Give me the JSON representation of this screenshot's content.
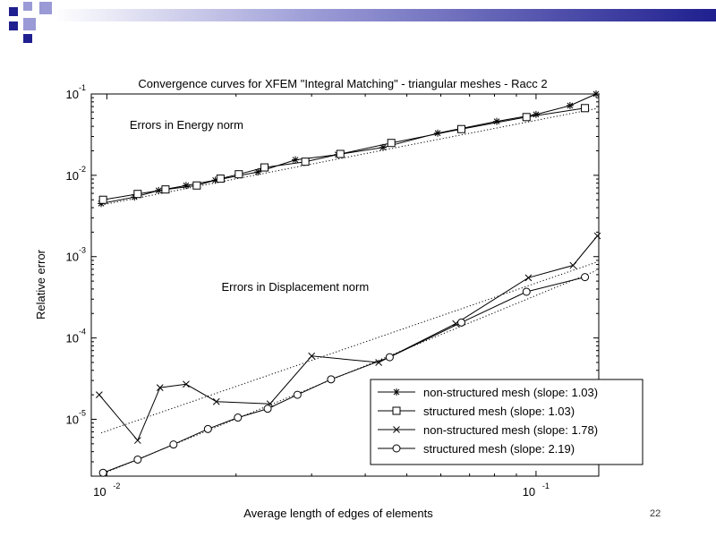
{
  "slide": {
    "page_number": "22",
    "accent": "#1f1f8f",
    "accent_light": "#9a9ad6"
  },
  "chart_data": {
    "type": "line",
    "title": "Convergence curves for XFEM \"Integral Matching\" - triangular meshes - Racc 2",
    "xlabel": "Average length of edges of elements",
    "ylabel": "Relative error",
    "x_scale": "log",
    "y_scale": "log",
    "xlim": [
      0.0092,
      0.14
    ],
    "ylim": [
      2e-06,
      0.1
    ],
    "grid": false,
    "legend_position": "bottom-right",
    "x_ticks": [
      {
        "value": 0.01,
        "base": "10",
        "exp": "-2"
      },
      {
        "value": 0.1,
        "base": "10",
        "exp": "-1"
      }
    ],
    "y_ticks": [
      {
        "value": 0.1,
        "base": "10",
        "exp": "-1"
      },
      {
        "value": 0.01,
        "base": "10",
        "exp": "-2"
      },
      {
        "value": 0.001,
        "base": "10",
        "exp": "-3"
      },
      {
        "value": 0.0001,
        "base": "10",
        "exp": "-4"
      },
      {
        "value": 1e-05,
        "base": "10",
        "exp": "-5"
      }
    ],
    "annotations": [
      {
        "text": "Errors in Energy norm",
        "x": 0.0113,
        "y": 0.037
      },
      {
        "text": "Errors in Displacement norm",
        "x": 0.0185,
        "y": 0.00038
      }
    ],
    "series": [
      {
        "name": "non-structured mesh (slope: 1.03)",
        "marker": "star",
        "x": [
          0.0097,
          0.0116,
          0.0132,
          0.0153,
          0.0179,
          0.0225,
          0.0275,
          0.0345,
          0.044,
          0.059,
          0.081,
          0.1,
          0.12,
          0.138
        ],
        "y": [
          0.0045,
          0.0054,
          0.0065,
          0.0075,
          0.0087,
          0.011,
          0.0155,
          0.018,
          0.022,
          0.033,
          0.046,
          0.056,
          0.072,
          0.1
        ]
      },
      {
        "name": "structured mesh (slope: 1.03)",
        "marker": "square",
        "x": [
          0.0098,
          0.0118,
          0.0137,
          0.0162,
          0.0184,
          0.0203,
          0.0233,
          0.029,
          0.035,
          0.046,
          0.067,
          0.095,
          0.13
        ],
        "y": [
          0.005,
          0.0059,
          0.0067,
          0.0075,
          0.0091,
          0.0103,
          0.0125,
          0.0147,
          0.0183,
          0.025,
          0.037,
          0.052,
          0.067
        ]
      },
      {
        "name": "non-structured mesh (slope: 1.78)",
        "marker": "x",
        "x": [
          0.0096,
          0.0118,
          0.0133,
          0.0153,
          0.018,
          0.024,
          0.03,
          0.043,
          0.065,
          0.096,
          0.122,
          0.139
        ],
        "y": [
          2e-05,
          5.5e-06,
          2.45e-05,
          2.7e-05,
          1.65e-05,
          1.55e-05,
          6e-05,
          5e-05,
          0.00015,
          0.00055,
          0.00078,
          0.0018
        ]
      },
      {
        "name": "structured mesh (slope: 2.19)",
        "marker": "circle",
        "x": [
          0.0098,
          0.0118,
          0.0143,
          0.0172,
          0.0202,
          0.0237,
          0.0278,
          0.0333,
          0.0456,
          0.067,
          0.095,
          0.13
        ],
        "y": [
          2.2e-06,
          3.2e-06,
          4.9e-06,
          7.6e-06,
          1.05e-05,
          1.35e-05,
          2e-05,
          3.1e-05,
          5.8e-05,
          0.000155,
          0.00037,
          0.00056
        ]
      }
    ],
    "fit_lines": [
      {
        "style": "dotted",
        "x": [
          0.0097,
          0.138
        ],
        "y": [
          0.0043,
          0.066
        ]
      },
      {
        "style": "dotted",
        "x": [
          0.0097,
          0.138
        ],
        "y": [
          6.8e-06,
          0.00085
        ]
      },
      {
        "style": "dotted",
        "x": [
          0.0097,
          0.138
        ],
        "y": [
          2.1e-06,
          0.00067
        ]
      }
    ]
  }
}
